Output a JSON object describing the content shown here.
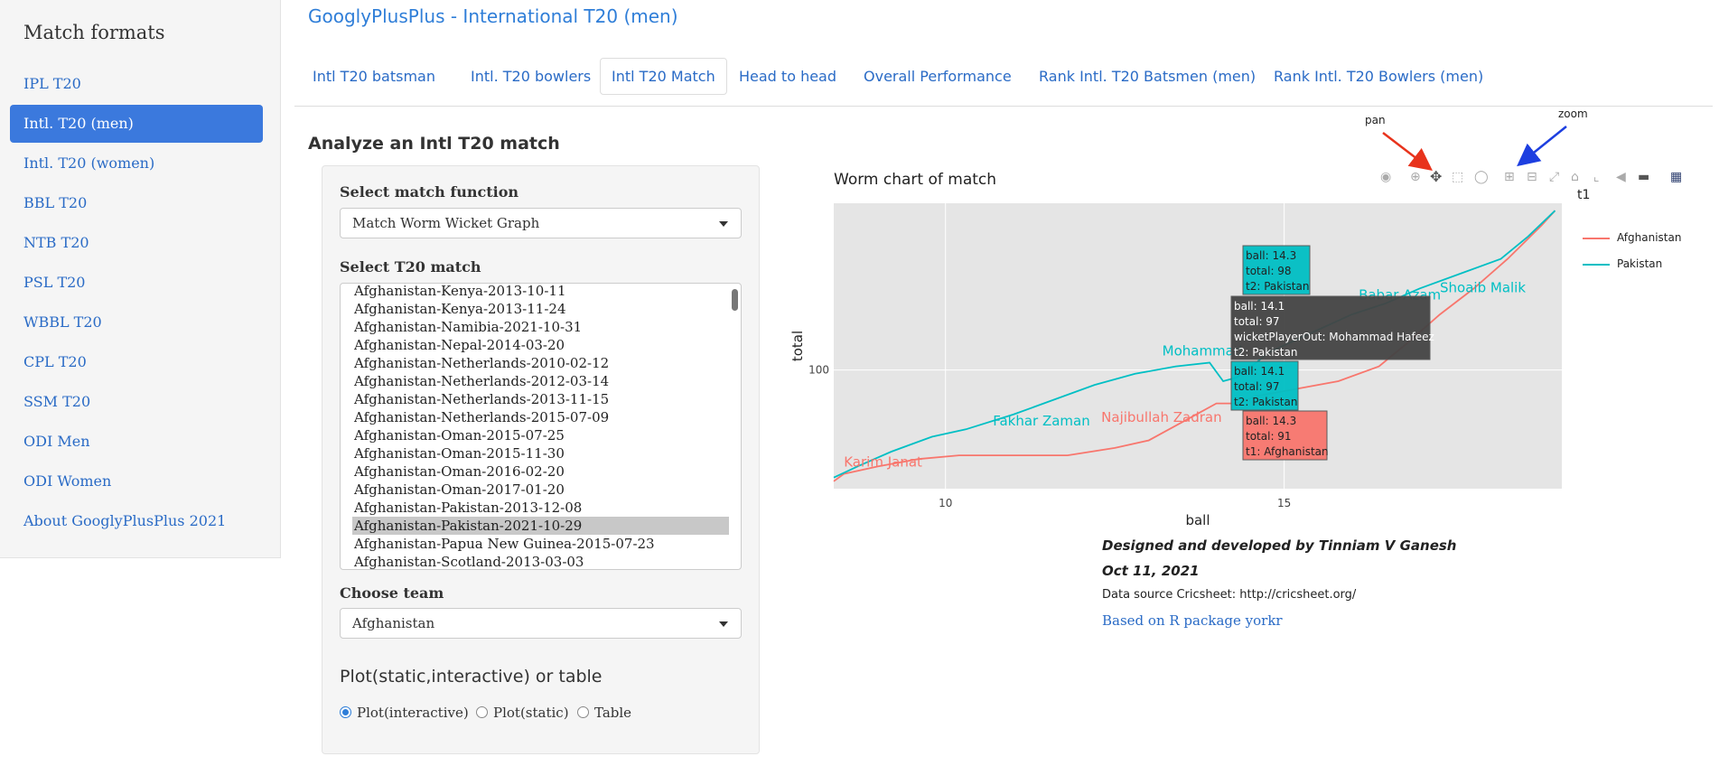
{
  "sidebar": {
    "title": "Match formats",
    "items": [
      {
        "label": "IPL T20"
      },
      {
        "label": "Intl. T20 (men)"
      },
      {
        "label": "Intl. T20 (women)"
      },
      {
        "label": "BBL T20"
      },
      {
        "label": "NTB T20"
      },
      {
        "label": "PSL T20"
      },
      {
        "label": "WBBL T20"
      },
      {
        "label": "CPL T20"
      },
      {
        "label": "SSM T20"
      },
      {
        "label": "ODI Men"
      },
      {
        "label": "ODI Women"
      },
      {
        "label": "About GooglyPlusPlus 2021"
      }
    ]
  },
  "header": {
    "title": "GooglyPlusPlus - International T20 (men)"
  },
  "tabs": [
    {
      "label": "Intl T20 batsman"
    },
    {
      "label": "Intl. T20 bowlers"
    },
    {
      "label": "Intl T20 Match"
    },
    {
      "label": "Head to head"
    },
    {
      "label": "Overall Performance"
    },
    {
      "label": "Rank Intl. T20 Batsmen (men)"
    },
    {
      "label": "Rank Intl. T20 Bowlers (men)"
    }
  ],
  "main": {
    "section_title": "Analyze an Intl T20 match",
    "match_function": {
      "label": "Select match function",
      "value": "Match Worm Wicket Graph"
    },
    "match_select": {
      "label": "Select T20 match",
      "options": [
        "Afghanistan-Kenya-2013-10-11",
        "Afghanistan-Kenya-2013-11-24",
        "Afghanistan-Namibia-2021-10-31",
        "Afghanistan-Nepal-2014-03-20",
        "Afghanistan-Netherlands-2010-02-12",
        "Afghanistan-Netherlands-2012-03-14",
        "Afghanistan-Netherlands-2013-11-15",
        "Afghanistan-Netherlands-2015-07-09",
        "Afghanistan-Oman-2015-07-25",
        "Afghanistan-Oman-2015-11-30",
        "Afghanistan-Oman-2016-02-20",
        "Afghanistan-Oman-2017-01-20",
        "Afghanistan-Pakistan-2013-12-08",
        "Afghanistan-Pakistan-2021-10-29",
        "Afghanistan-Papua New Guinea-2015-07-23",
        "Afghanistan-Scotland-2013-03-03"
      ],
      "selected": "Afghanistan-Pakistan-2021-10-29"
    },
    "team": {
      "label": "Choose team",
      "value": "Afghanistan"
    },
    "output": {
      "heading": "Plot(static,interactive) or table",
      "options": [
        "Plot(interactive)",
        "Plot(static)",
        "Table"
      ],
      "selected": "Plot(interactive)"
    }
  },
  "annotations": {
    "pan": "pan",
    "zoom": "zoom"
  },
  "modebar": [
    "camera-icon",
    "zoom-icon",
    "pan-icon",
    "box-select-icon",
    "lasso-icon",
    "zoom-in-icon",
    "zoom-out-icon",
    "autoscale-icon",
    "reset-axes-icon",
    "spike-lines-icon",
    "hover-closest-icon",
    "hover-compare-icon",
    "plotly-logo-icon"
  ],
  "chart_data": {
    "type": "line",
    "title": "Worm chart of match",
    "xlabel": "ball",
    "ylabel": "total",
    "x_ticks": [
      "10",
      "15"
    ],
    "y_ticks": [
      "100"
    ],
    "xlim": [
      8.35,
      19.1
    ],
    "ylim": [
      68,
      145
    ],
    "legend_title": "t1",
    "legend_position": "right",
    "colors": {
      "Afghanistan": "#f8766d",
      "Pakistan": "#00bfc4",
      "plot_bg": "#e5e5e5"
    },
    "series": [
      {
        "name": "Afghanistan",
        "points": [
          [
            8.35,
            70
          ],
          [
            8.5,
            72
          ],
          [
            9.0,
            74
          ],
          [
            9.6,
            76
          ],
          [
            10.2,
            77
          ],
          [
            11,
            77
          ],
          [
            11.8,
            77
          ],
          [
            12.5,
            79
          ],
          [
            13.0,
            81
          ],
          [
            13.3,
            84
          ],
          [
            13.7,
            88
          ],
          [
            14.0,
            91
          ],
          [
            14.3,
            91
          ],
          [
            14.6,
            93
          ],
          [
            15.2,
            95
          ],
          [
            15.8,
            97
          ],
          [
            16.4,
            101
          ],
          [
            16.8,
            107
          ],
          [
            17.3,
            115
          ],
          [
            17.8,
            122
          ],
          [
            18.3,
            130
          ],
          [
            18.8,
            139
          ],
          [
            19.0,
            143
          ]
        ]
      },
      {
        "name": "Pakistan",
        "points": [
          [
            8.35,
            71
          ],
          [
            8.7,
            74
          ],
          [
            9.2,
            78
          ],
          [
            9.8,
            82
          ],
          [
            10.3,
            84
          ],
          [
            11.0,
            88
          ],
          [
            11.6,
            92
          ],
          [
            12.2,
            96
          ],
          [
            12.8,
            99
          ],
          [
            13.4,
            101
          ],
          [
            13.9,
            102
          ],
          [
            14.1,
            97
          ],
          [
            14.3,
            98
          ],
          [
            14.8,
            105
          ],
          [
            15.4,
            110
          ],
          [
            16.0,
            115
          ],
          [
            16.5,
            118
          ],
          [
            17.0,
            122
          ],
          [
            17.6,
            126
          ],
          [
            18.2,
            130
          ],
          [
            18.6,
            136
          ],
          [
            19.0,
            143
          ]
        ]
      }
    ],
    "labels": [
      {
        "text": "Karim Janat",
        "x": 8.5,
        "y": 74,
        "series": "Afghanistan"
      },
      {
        "text": "Najibullah Zadran",
        "x": 12.3,
        "y": 86,
        "series": "Afghanistan"
      },
      {
        "text": "Fakhar Zaman",
        "x": 10.7,
        "y": 85,
        "series": "Pakistan"
      },
      {
        "text": "Mohammad",
        "x": 13.2,
        "y": 104,
        "series": "Pakistan"
      },
      {
        "text": "Babar Azam",
        "x": 16.1,
        "y": 119,
        "series": "Pakistan"
      },
      {
        "text": "Shoaib Malik",
        "x": 17.3,
        "y": 121,
        "series": "Pakistan"
      }
    ],
    "tooltips": [
      {
        "lines": [
          "ball: 14.3",
          "total:  98",
          "t2: Pakistan"
        ],
        "color": "Pakistan"
      },
      {
        "lines": [
          "ball: 14.1",
          "total:  97",
          "wicketPlayerOut: Mohammad Hafeez",
          "t2: Pakistan"
        ],
        "color": "dark"
      },
      {
        "lines": [
          "ball: 14.1",
          "total:  97",
          "t2: Pakistan"
        ],
        "color": "Pakistan"
      },
      {
        "lines": [
          "ball: 14.3",
          "total:  91",
          "t1: Afghanistan"
        ],
        "color": "Afghanistan"
      }
    ]
  },
  "credits": {
    "line1": "Designed and developed by Tinniam V Ganesh",
    "line2": "Oct 11, 2021",
    "line3": "Data source Cricsheet: http://cricsheet.org/",
    "link": "Based on R package yorkr"
  }
}
